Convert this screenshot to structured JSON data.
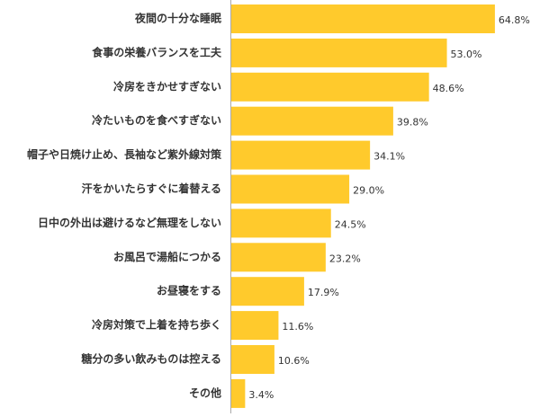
{
  "chart_data": {
    "type": "bar",
    "orientation": "horizontal",
    "color": "#ffca2c",
    "categories": [
      "夜間の十分な睡眠",
      "食事の栄養バランスを工夫",
      "冷房をきかせすぎない",
      "冷たいものを食べすぎない",
      "帽子や日焼け止め、長袖など紫外線対策",
      "汗をかいたらすぐに着替える",
      "日中の外出は避けるなど無理をしない",
      "お風呂で湯船につかる",
      "お昼寝をする",
      "冷房対策で上着を持ち歩く",
      "糖分の多い飲みものは控える",
      "その他"
    ],
    "values": [
      64.8,
      53.0,
      48.6,
      39.8,
      34.1,
      29.0,
      24.5,
      23.2,
      17.9,
      11.6,
      10.6,
      3.4
    ],
    "value_labels": [
      "64.8%",
      "53.0%",
      "48.6%",
      "39.8%",
      "34.1%",
      "29.0%",
      "24.5%",
      "23.2%",
      "17.9%",
      "11.6%",
      "10.6%",
      "3.4%"
    ]
  }
}
